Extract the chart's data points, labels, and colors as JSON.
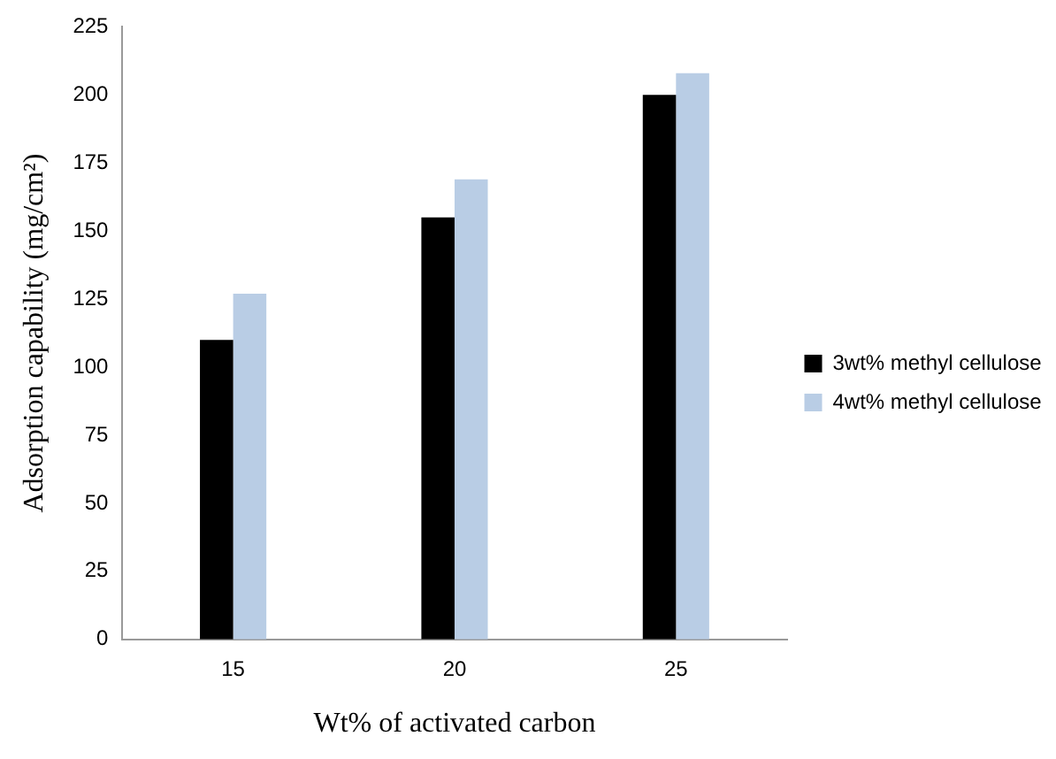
{
  "chart_data": {
    "type": "bar",
    "xlabel": "Wt% of activated carbon",
    "ylabel": "Adsorption capability (mg/cm²)",
    "categories": [
      "15",
      "20",
      "25"
    ],
    "series": [
      {
        "name": "3wt% methyl cellulose",
        "color": "#000000",
        "values": [
          110,
          155,
          200
        ]
      },
      {
        "name": "4wt% methyl cellulose",
        "color": "#b9cde5",
        "values": [
          127,
          169,
          208
        ]
      }
    ],
    "ylim": [
      0,
      225
    ],
    "yticks": [
      0,
      25,
      50,
      75,
      100,
      125,
      150,
      175,
      200,
      225
    ],
    "grid": false,
    "legend": "right"
  }
}
